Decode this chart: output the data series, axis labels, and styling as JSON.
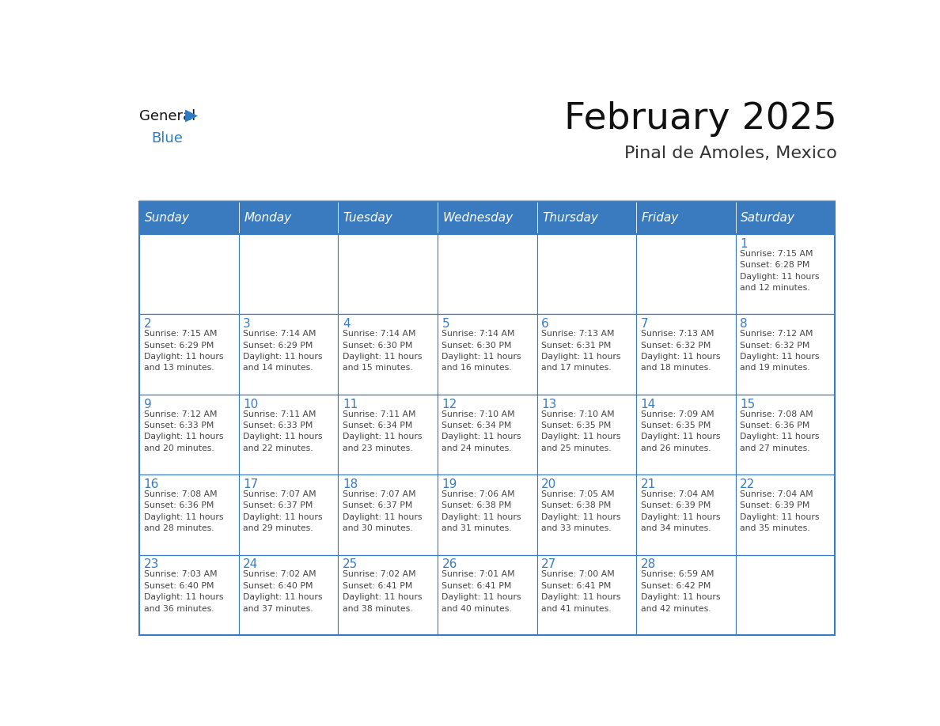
{
  "title": "February 2025",
  "subtitle": "Pinal de Amoles, Mexico",
  "days_of_week": [
    "Sunday",
    "Monday",
    "Tuesday",
    "Wednesday",
    "Thursday",
    "Friday",
    "Saturday"
  ],
  "header_bg": "#3a7bbf",
  "header_text": "#ffffff",
  "cell_bg": "#ffffff",
  "border_color": "#3a7bbf",
  "day_num_color": "#3a7bbf",
  "text_color": "#444444",
  "title_color": "#111111",
  "subtitle_color": "#333333",
  "logo_general_color": "#111111",
  "logo_blue_color": "#2e7bbf",
  "weeks": [
    [
      {
        "day": null,
        "info": null
      },
      {
        "day": null,
        "info": null
      },
      {
        "day": null,
        "info": null
      },
      {
        "day": null,
        "info": null
      },
      {
        "day": null,
        "info": null
      },
      {
        "day": null,
        "info": null
      },
      {
        "day": 1,
        "info": "Sunrise: 7:15 AM\nSunset: 6:28 PM\nDaylight: 11 hours\nand 12 minutes."
      }
    ],
    [
      {
        "day": 2,
        "info": "Sunrise: 7:15 AM\nSunset: 6:29 PM\nDaylight: 11 hours\nand 13 minutes."
      },
      {
        "day": 3,
        "info": "Sunrise: 7:14 AM\nSunset: 6:29 PM\nDaylight: 11 hours\nand 14 minutes."
      },
      {
        "day": 4,
        "info": "Sunrise: 7:14 AM\nSunset: 6:30 PM\nDaylight: 11 hours\nand 15 minutes."
      },
      {
        "day": 5,
        "info": "Sunrise: 7:14 AM\nSunset: 6:30 PM\nDaylight: 11 hours\nand 16 minutes."
      },
      {
        "day": 6,
        "info": "Sunrise: 7:13 AM\nSunset: 6:31 PM\nDaylight: 11 hours\nand 17 minutes."
      },
      {
        "day": 7,
        "info": "Sunrise: 7:13 AM\nSunset: 6:32 PM\nDaylight: 11 hours\nand 18 minutes."
      },
      {
        "day": 8,
        "info": "Sunrise: 7:12 AM\nSunset: 6:32 PM\nDaylight: 11 hours\nand 19 minutes."
      }
    ],
    [
      {
        "day": 9,
        "info": "Sunrise: 7:12 AM\nSunset: 6:33 PM\nDaylight: 11 hours\nand 20 minutes."
      },
      {
        "day": 10,
        "info": "Sunrise: 7:11 AM\nSunset: 6:33 PM\nDaylight: 11 hours\nand 22 minutes."
      },
      {
        "day": 11,
        "info": "Sunrise: 7:11 AM\nSunset: 6:34 PM\nDaylight: 11 hours\nand 23 minutes."
      },
      {
        "day": 12,
        "info": "Sunrise: 7:10 AM\nSunset: 6:34 PM\nDaylight: 11 hours\nand 24 minutes."
      },
      {
        "day": 13,
        "info": "Sunrise: 7:10 AM\nSunset: 6:35 PM\nDaylight: 11 hours\nand 25 minutes."
      },
      {
        "day": 14,
        "info": "Sunrise: 7:09 AM\nSunset: 6:35 PM\nDaylight: 11 hours\nand 26 minutes."
      },
      {
        "day": 15,
        "info": "Sunrise: 7:08 AM\nSunset: 6:36 PM\nDaylight: 11 hours\nand 27 minutes."
      }
    ],
    [
      {
        "day": 16,
        "info": "Sunrise: 7:08 AM\nSunset: 6:36 PM\nDaylight: 11 hours\nand 28 minutes."
      },
      {
        "day": 17,
        "info": "Sunrise: 7:07 AM\nSunset: 6:37 PM\nDaylight: 11 hours\nand 29 minutes."
      },
      {
        "day": 18,
        "info": "Sunrise: 7:07 AM\nSunset: 6:37 PM\nDaylight: 11 hours\nand 30 minutes."
      },
      {
        "day": 19,
        "info": "Sunrise: 7:06 AM\nSunset: 6:38 PM\nDaylight: 11 hours\nand 31 minutes."
      },
      {
        "day": 20,
        "info": "Sunrise: 7:05 AM\nSunset: 6:38 PM\nDaylight: 11 hours\nand 33 minutes."
      },
      {
        "day": 21,
        "info": "Sunrise: 7:04 AM\nSunset: 6:39 PM\nDaylight: 11 hours\nand 34 minutes."
      },
      {
        "day": 22,
        "info": "Sunrise: 7:04 AM\nSunset: 6:39 PM\nDaylight: 11 hours\nand 35 minutes."
      }
    ],
    [
      {
        "day": 23,
        "info": "Sunrise: 7:03 AM\nSunset: 6:40 PM\nDaylight: 11 hours\nand 36 minutes."
      },
      {
        "day": 24,
        "info": "Sunrise: 7:02 AM\nSunset: 6:40 PM\nDaylight: 11 hours\nand 37 minutes."
      },
      {
        "day": 25,
        "info": "Sunrise: 7:02 AM\nSunset: 6:41 PM\nDaylight: 11 hours\nand 38 minutes."
      },
      {
        "day": 26,
        "info": "Sunrise: 7:01 AM\nSunset: 6:41 PM\nDaylight: 11 hours\nand 40 minutes."
      },
      {
        "day": 27,
        "info": "Sunrise: 7:00 AM\nSunset: 6:41 PM\nDaylight: 11 hours\nand 41 minutes."
      },
      {
        "day": 28,
        "info": "Sunrise: 6:59 AM\nSunset: 6:42 PM\nDaylight: 11 hours\nand 42 minutes."
      },
      {
        "day": null,
        "info": null
      }
    ]
  ]
}
